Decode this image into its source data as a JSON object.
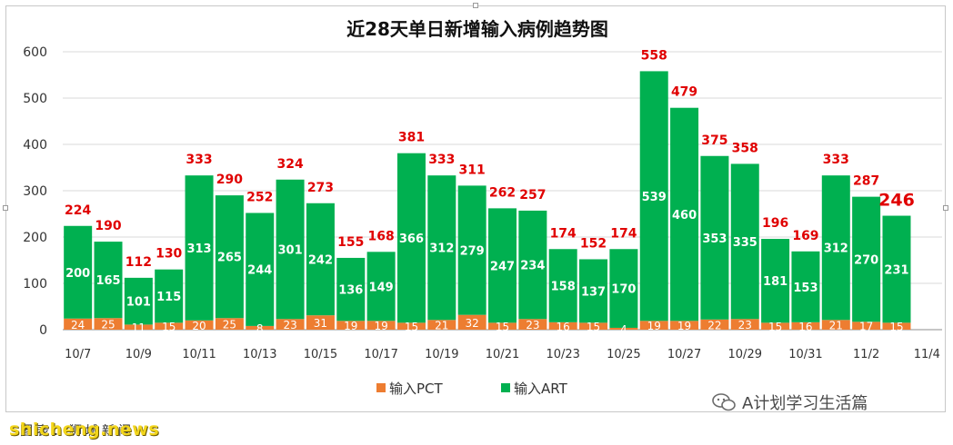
{
  "title": "近28天单日新增输入病例趋势图",
  "legend": {
    "items": [
      {
        "label": "输入PCT",
        "color": "#ed7d31"
      },
      {
        "label": "输入ART",
        "color": "#00b050"
      }
    ]
  },
  "watermarks": {
    "source": "shicheng.news",
    "caption": "图表：狮城新闻",
    "account": "A计划学习生活篇"
  },
  "chart_data": {
    "type": "bar",
    "stacked": true,
    "title": "近28天单日新增输入病例趋势图",
    "categories": [
      "10/7",
      "10/8",
      "10/9",
      "10/10",
      "10/11",
      "10/12",
      "10/13",
      "10/14",
      "10/15",
      "10/16",
      "10/17",
      "10/18",
      "10/19",
      "10/20",
      "10/21",
      "10/22",
      "10/23",
      "10/24",
      "10/25",
      "10/26",
      "10/27",
      "10/28",
      "10/29",
      "10/30",
      "10/31",
      "11/1",
      "11/2",
      "11/3",
      "11/4"
    ],
    "x_tick_labels": [
      "10/7",
      "10/9",
      "10/11",
      "10/13",
      "10/15",
      "10/17",
      "10/19",
      "10/21",
      "10/23",
      "10/25",
      "10/27",
      "10/29",
      "10/31",
      "11/2",
      "11/4"
    ],
    "series": [
      {
        "name": "输入PCT",
        "color": "#ed7d31",
        "values": [
          24,
          25,
          11,
          15,
          20,
          25,
          8,
          23,
          31,
          19,
          19,
          15,
          21,
          32,
          15,
          23,
          16,
          15,
          4,
          19,
          19,
          22,
          23,
          15,
          16,
          21,
          17,
          15,
          null
        ]
      },
      {
        "name": "输入ART",
        "color": "#00b050",
        "values": [
          200,
          165,
          101,
          115,
          313,
          265,
          244,
          301,
          242,
          136,
          149,
          366,
          312,
          279,
          247,
          234,
          158,
          137,
          170,
          539,
          460,
          353,
          335,
          181,
          153,
          312,
          270,
          231,
          null
        ]
      }
    ],
    "totals": [
      224,
      190,
      112,
      130,
      333,
      290,
      252,
      324,
      273,
      155,
      168,
      381,
      333,
      311,
      262,
      257,
      174,
      152,
      174,
      558,
      479,
      375,
      358,
      196,
      169,
      333,
      287,
      246,
      null
    ],
    "highlight_total_index": 27,
    "total_label_color": "#e00000",
    "ylim": [
      0,
      600
    ],
    "y_ticks": [
      0,
      100,
      200,
      300,
      400,
      500,
      600
    ],
    "grid": true,
    "legend_position": "bottom",
    "xlabel": "",
    "ylabel": ""
  }
}
